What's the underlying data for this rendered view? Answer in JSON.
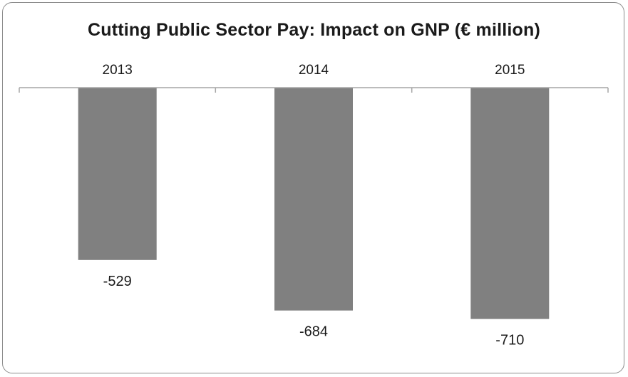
{
  "chart_data": {
    "type": "bar",
    "title": "Cutting Public Sector Pay: Impact on GNP (€ million)",
    "categories": [
      "2013",
      "2014",
      "2015"
    ],
    "values": [
      -529,
      -684,
      -710
    ],
    "data_labels": [
      "-529",
      "-684",
      "-710"
    ],
    "xlabel": "",
    "ylabel": "",
    "ylim": [
      -800,
      0
    ],
    "x_axis_position": "top",
    "grid": false,
    "legend": "none",
    "bar_color": "#808080",
    "axis_color": "#a6a6a6"
  }
}
